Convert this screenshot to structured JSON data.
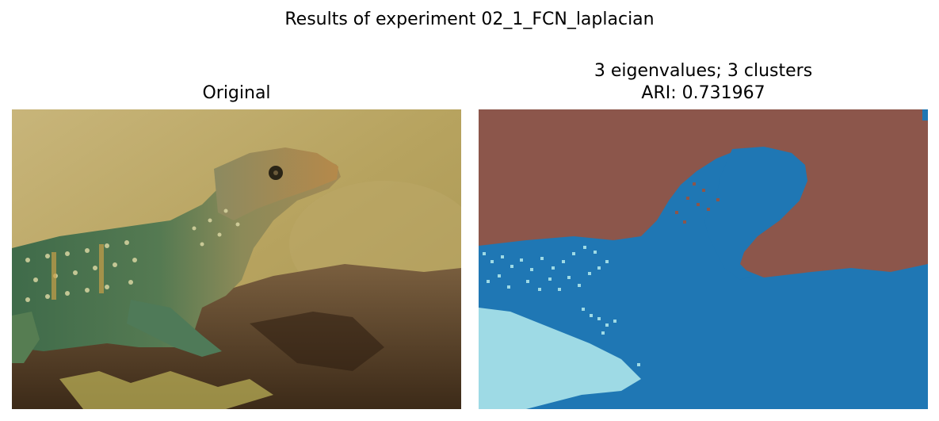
{
  "figure": {
    "title": "Results of experiment 02_1_FCN_laplacian"
  },
  "panels": {
    "original": {
      "title": "Original",
      "image": "photograph of a collared lizard resting on a weathered log against a blurred olive-yellow background"
    },
    "segmentation": {
      "title_line1": "3 eigenvalues; 3 clusters",
      "title_line2": "ARI: 0.731967",
      "image": "cluster label map with three colors",
      "cluster_colors": [
        "#8c564b",
        "#1f77b4",
        "#9edae5"
      ]
    }
  }
}
